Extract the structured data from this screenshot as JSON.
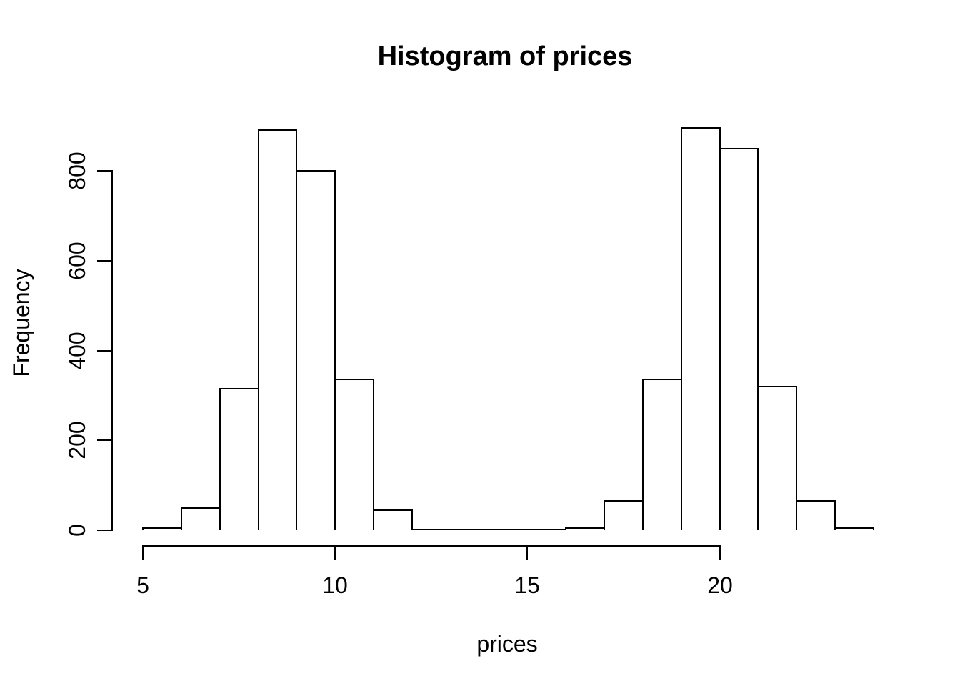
{
  "chart_data": {
    "type": "bar",
    "chart_kind": "histogram",
    "title": "Histogram of prices",
    "xlabel": "prices",
    "ylabel": "Frequency",
    "bins": [
      {
        "from": 5,
        "to": 6,
        "count": 5
      },
      {
        "from": 6,
        "to": 7,
        "count": 50
      },
      {
        "from": 7,
        "to": 8,
        "count": 315
      },
      {
        "from": 8,
        "to": 9,
        "count": 890
      },
      {
        "from": 9,
        "to": 10,
        "count": 800
      },
      {
        "from": 10,
        "to": 11,
        "count": 335
      },
      {
        "from": 11,
        "to": 12,
        "count": 45
      },
      {
        "from": 12,
        "to": 13,
        "count": 2
      },
      {
        "from": 13,
        "to": 14,
        "count": 0
      },
      {
        "from": 14,
        "to": 15,
        "count": 0
      },
      {
        "from": 15,
        "to": 16,
        "count": 0
      },
      {
        "from": 16,
        "to": 17,
        "count": 5
      },
      {
        "from": 17,
        "to": 18,
        "count": 65
      },
      {
        "from": 18,
        "to": 19,
        "count": 335
      },
      {
        "from": 19,
        "to": 20,
        "count": 895
      },
      {
        "from": 20,
        "to": 21,
        "count": 850
      },
      {
        "from": 21,
        "to": 22,
        "count": 320
      },
      {
        "from": 22,
        "to": 23,
        "count": 65
      },
      {
        "from": 23,
        "to": 24,
        "count": 5
      }
    ],
    "x_ticks": [
      5,
      10,
      15,
      20
    ],
    "y_ticks": [
      0,
      200,
      400,
      600,
      800
    ],
    "xlim": [
      5,
      24
    ],
    "ylim": [
      0,
      895
    ],
    "grid": false,
    "legend": false,
    "colors": {
      "bar_fill": "#ffffff",
      "bar_border": "#000000",
      "axis": "#000000",
      "text": "#000000",
      "background": "#ffffff"
    }
  }
}
